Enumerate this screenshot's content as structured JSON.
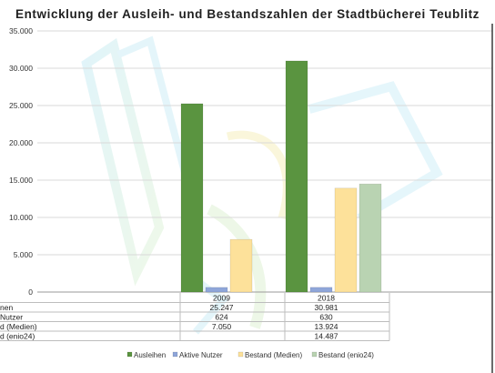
{
  "chart_data": {
    "type": "bar",
    "title": "Entwicklung der Ausleih- und Bestandszahlen der Stadtbücherei Teublitz",
    "categories": [
      "2009",
      "2018"
    ],
    "series": [
      {
        "name": "Ausleihen",
        "values": [
          25247,
          30981
        ],
        "labels": [
          "25.247",
          "30.981"
        ],
        "row_label": "nen",
        "color": "#5a9440"
      },
      {
        "name": "Aktive Nutzer",
        "values": [
          624,
          630
        ],
        "labels": [
          "624",
          "630"
        ],
        "row_label": "Nutzer",
        "color": "#8fa6d9"
      },
      {
        "name": "Bestand (Medien)",
        "values": [
          7050,
          13924
        ],
        "labels": [
          "7.050",
          "13.924"
        ],
        "row_label": "d (Medien)",
        "color": "#fde19a"
      },
      {
        "name": "Bestand (enio24)",
        "values": [
          null,
          14487
        ],
        "labels": [
          "",
          "14.487"
        ],
        "row_label": "d (enio24)",
        "color": "#b9d3b2"
      }
    ],
    "ylim": [
      0,
      35000
    ],
    "yticks": [
      0,
      5000,
      10000,
      15000,
      20000,
      25000,
      30000,
      35000
    ],
    "ytick_labels": [
      "0",
      "5.000",
      "10.000",
      "15.000",
      "20.000",
      "25.000",
      "30.000",
      "35.000"
    ],
    "grid": true,
    "legend": "bottom",
    "data_table": true
  }
}
